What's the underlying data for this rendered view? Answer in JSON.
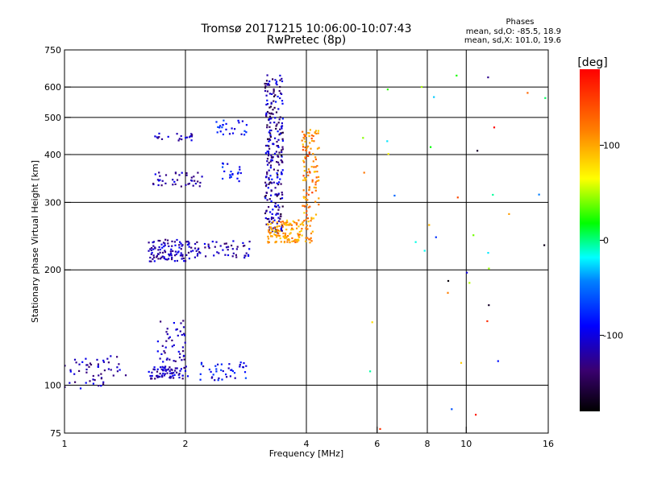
{
  "chart_data": {
    "type": "scatter",
    "title": "Tromsø 20171215 10:06:00-10:07:43",
    "subtitle": "RwPretec (8p)",
    "xlabel": "Frequency [MHz]",
    "ylabel": "Stationary phase Virtual Height [km]",
    "x_scale": "log",
    "y_scale": "log",
    "xlim": [
      1,
      16
    ],
    "ylim": [
      75,
      750
    ],
    "x_ticks": [
      1,
      2,
      4,
      6,
      8,
      10,
      16
    ],
    "x_tick_labels": [
      "1",
      "2",
      "4",
      "6",
      "8",
      "10",
      "16"
    ],
    "y_ticks": [
      75,
      100,
      200,
      300,
      400,
      500,
      600,
      750
    ],
    "y_tick_labels": [
      "75",
      "100",
      "200",
      "300",
      "400",
      "500",
      "600",
      "750"
    ],
    "x_gridlines": [
      2,
      4,
      6,
      8,
      10
    ],
    "y_gridlines": [
      100,
      200,
      300,
      400,
      500,
      600
    ],
    "grid": true,
    "phase_info": {
      "title": "Phases",
      "line1": "mean, sd,O: -85.5, 18.9",
      "line2": "mean, sd,X: 101.0, 19.6"
    },
    "colorbar": {
      "label": "[deg]",
      "range": [
        -180,
        180
      ],
      "tick_values": [
        100,
        0,
        -100
      ],
      "tick_labels": [
        "100",
        "0",
        "-100"
      ]
    },
    "clusters": [
      {
        "x_range": [
          1.0,
          1.25
        ],
        "y_range": [
          98,
          118
        ],
        "phase_range": [
          -140,
          -90
        ],
        "count": 40
      },
      {
        "x_range": [
          1.25,
          1.42
        ],
        "y_range": [
          103,
          122
        ],
        "phase_range": [
          -140,
          -90
        ],
        "count": 14
      },
      {
        "x_range": [
          1.62,
          2.05
        ],
        "y_range": [
          104,
          112
        ],
        "phase_range": [
          -140,
          -90
        ],
        "count": 70
      },
      {
        "x_range": [
          1.7,
          2.0
        ],
        "y_range": [
          115,
          150
        ],
        "phase_range": [
          -140,
          -90
        ],
        "count": 45
      },
      {
        "x_range": [
          2.1,
          2.85
        ],
        "y_range": [
          103,
          115
        ],
        "phase_range": [
          -120,
          -60
        ],
        "count": 40
      },
      {
        "x_range": [
          1.62,
          2.05
        ],
        "y_range": [
          210,
          240
        ],
        "phase_range": [
          -140,
          -90
        ],
        "count": 100
      },
      {
        "x_range": [
          2.05,
          2.9
        ],
        "y_range": [
          215,
          238
        ],
        "phase_range": [
          -140,
          -90
        ],
        "count": 55
      },
      {
        "x_range": [
          1.65,
          2.2
        ],
        "y_range": [
          330,
          360
        ],
        "phase_range": [
          -140,
          -90
        ],
        "count": 40
      },
      {
        "x_range": [
          2.45,
          2.75
        ],
        "y_range": [
          340,
          380
        ],
        "phase_range": [
          -110,
          -60
        ],
        "count": 20
      },
      {
        "x_range": [
          1.65,
          2.2
        ],
        "y_range": [
          435,
          455
        ],
        "phase_range": [
          -140,
          -90
        ],
        "count": 20
      },
      {
        "x_range": [
          2.35,
          2.85
        ],
        "y_range": [
          450,
          495
        ],
        "phase_range": [
          -110,
          -60
        ],
        "count": 25
      },
      {
        "x_range": [
          3.15,
          3.5
        ],
        "y_range": [
          250,
          650
        ],
        "phase_range": [
          -160,
          -80
        ],
        "count": 260
      },
      {
        "x_range": [
          3.2,
          4.15
        ],
        "y_range": [
          235,
          270
        ],
        "phase_range": [
          80,
          130
        ],
        "count": 140
      },
      {
        "x_range": [
          3.9,
          4.3
        ],
        "y_range": [
          270,
          470
        ],
        "phase_range": [
          80,
          150
        ],
        "count": 110
      },
      {
        "x_range": [
          4.8,
          16.0
        ],
        "y_range": [
          75,
          650
        ],
        "phase_range": [
          -180,
          180
        ],
        "count": 40
      }
    ]
  }
}
